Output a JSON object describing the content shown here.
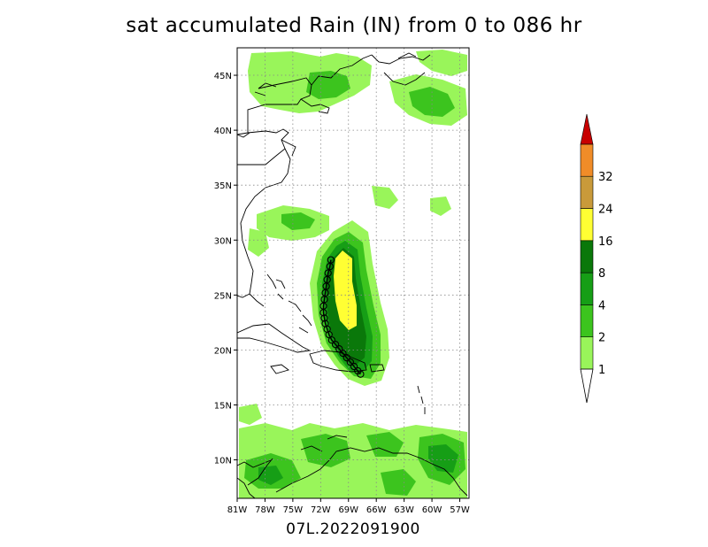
{
  "title": "sat accumulated Rain (IN) from 0 to 086 hr",
  "footer": "07L.2022091900",
  "map": {
    "lon_range": [
      -81,
      -56
    ],
    "lat_range": [
      6.5,
      47.5
    ],
    "lon_ticks": [
      "81W",
      "78W",
      "75W",
      "72W",
      "69W",
      "66W",
      "63W",
      "60W",
      "57W"
    ],
    "lat_ticks": [
      "10N",
      "15N",
      "20N",
      "25N",
      "30N",
      "35N",
      "40N",
      "45N"
    ],
    "gridlines": "dotted"
  },
  "colorbar": {
    "labels": [
      "1",
      "2",
      "4",
      "8",
      "16",
      "24",
      "32"
    ],
    "colors": [
      "#99f55a",
      "#3cc41e",
      "#169e16",
      "#0a780a",
      "#ffff33",
      "#c99a3a",
      "#f08c28",
      "#c80000"
    ]
  },
  "storm_track": {
    "name": "07L",
    "points": [
      {
        "lon": -67.7,
        "lat": 17.8
      },
      {
        "lon": -68.0,
        "lat": 18.1
      },
      {
        "lon": -68.4,
        "lat": 18.5
      },
      {
        "lon": -68.8,
        "lat": 18.9
      },
      {
        "lon": -69.2,
        "lat": 19.3
      },
      {
        "lon": -69.6,
        "lat": 19.7
      },
      {
        "lon": -70.0,
        "lat": 20.1
      },
      {
        "lon": -70.4,
        "lat": 20.5
      },
      {
        "lon": -70.8,
        "lat": 20.9
      },
      {
        "lon": -71.1,
        "lat": 21.4
      },
      {
        "lon": -71.3,
        "lat": 21.9
      },
      {
        "lon": -71.5,
        "lat": 22.4
      },
      {
        "lon": -71.6,
        "lat": 22.9
      },
      {
        "lon": -71.7,
        "lat": 23.4
      },
      {
        "lon": -71.7,
        "lat": 24.0
      },
      {
        "lon": -71.6,
        "lat": 24.6
      },
      {
        "lon": -71.5,
        "lat": 25.2
      },
      {
        "lon": -71.4,
        "lat": 25.8
      },
      {
        "lon": -71.3,
        "lat": 26.4
      },
      {
        "lon": -71.2,
        "lat": 27.0
      },
      {
        "lon": -71.0,
        "lat": 27.6
      },
      {
        "lon": -70.9,
        "lat": 28.2
      }
    ]
  }
}
